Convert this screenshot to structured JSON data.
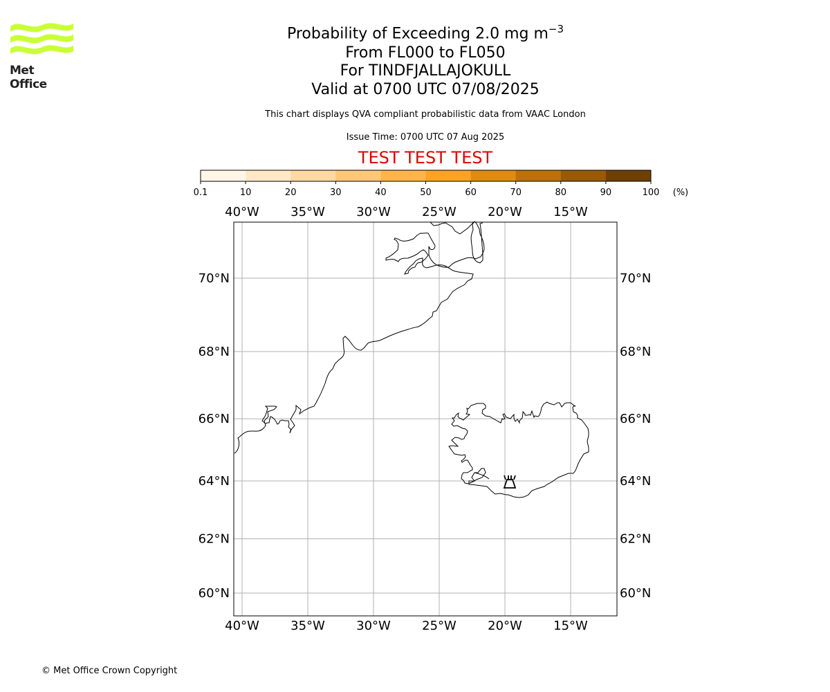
{
  "header": {
    "logo_text": "Met Office",
    "title_prefix": "Probability of Exceeding 2.0 mg m",
    "title_superscript": "−3",
    "line2": "From FL000 to FL050",
    "line3": "For TINDFJALLAJOKULL",
    "line4": "Valid at 0700 UTC 07/08/2025",
    "description": "This chart displays QVA compliant probabilistic data from VAAC London",
    "issue_time": "Issue Time: 0700 UTC 07 Aug 2025",
    "test_banner": "TEST TEST TEST"
  },
  "colorbar": {
    "ticks": [
      "0.1",
      "10",
      "20",
      "30",
      "40",
      "50",
      "60",
      "70",
      "80",
      "90",
      "100"
    ],
    "unit": "(%)",
    "colors": [
      "#fff6e8",
      "#ffe8c6",
      "#ffd8a2",
      "#ffc879",
      "#ffb54c",
      "#fba327",
      "#de8c11",
      "#bd7209",
      "#995a08",
      "#6e4006"
    ]
  },
  "map": {
    "lon_labels": [
      "40°W",
      "35°W",
      "30°W",
      "25°W",
      "20°W",
      "15°W"
    ],
    "lon_values": [
      -40,
      -35,
      -30,
      -25,
      -20,
      -15
    ],
    "lat_labels": [
      "70°N",
      "68°N",
      "66°N",
      "64°N",
      "62°N",
      "60°N"
    ],
    "lat_values": [
      70,
      68,
      66,
      64,
      62,
      60
    ],
    "grid_color": "#b0b0b0",
    "volcano_icon": "volcano-icon"
  },
  "footer": {
    "copyright": "© Met Office Crown Copyright"
  }
}
